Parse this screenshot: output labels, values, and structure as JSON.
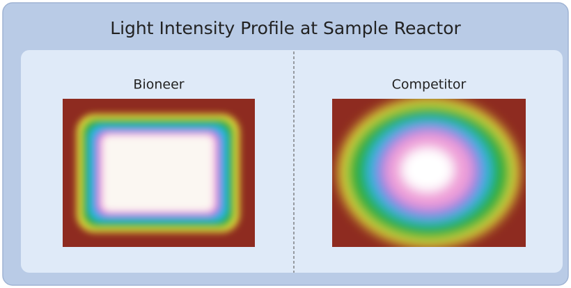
{
  "header": {
    "title": "Light Intensity Profile at Sample Reactor"
  },
  "panels": [
    {
      "label": "Bioneer"
    },
    {
      "label": "Competitor"
    }
  ]
}
